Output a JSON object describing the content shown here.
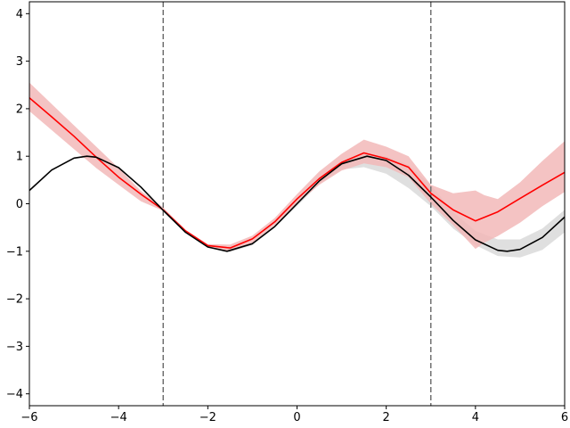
{
  "chart_data": {
    "type": "line",
    "title": "",
    "xlabel": "",
    "ylabel": "",
    "xlim": [
      -6,
      6
    ],
    "ylim": [
      -4.25,
      4.25
    ],
    "grid": false,
    "legend": "none",
    "xticks": [
      -6,
      -4,
      -2,
      0,
      2,
      4,
      6
    ],
    "yticks": [
      -4,
      -3,
      -2,
      -1,
      0,
      1,
      2,
      3,
      4
    ],
    "xtick_labels": [
      "−6",
      "−4",
      "−2",
      "0",
      "2",
      "4",
      "6"
    ],
    "ytick_labels": [
      "−4",
      "−3",
      "−2",
      "−1",
      "0",
      "1",
      "2",
      "3",
      "4"
    ],
    "vlines": [
      {
        "x": -3,
        "style": "dashed",
        "color": "#707070"
      },
      {
        "x": 3,
        "style": "dashed",
        "color": "#707070"
      }
    ],
    "series": [
      {
        "kind": "band",
        "color": "#d9d9d9",
        "x": [
          -3,
          -2.5,
          -2,
          -1.5,
          -1,
          -0.5,
          0,
          0.5,
          1,
          1.5,
          2,
          2.5,
          3,
          3.5,
          4,
          4.5,
          5,
          5.5,
          6
        ],
        "lower": [
          -0.14,
          -0.6,
          -0.91,
          -1.02,
          -0.87,
          -0.5,
          -0.05,
          0.42,
          0.72,
          0.77,
          0.63,
          0.33,
          -0.05,
          -0.52,
          -0.87,
          -1.1,
          -1.13,
          -0.97,
          -0.6
        ],
        "upper": [
          -0.14,
          -0.6,
          -0.91,
          -0.97,
          -0.82,
          -0.46,
          0.05,
          0.53,
          0.88,
          1.05,
          1.0,
          0.82,
          0.4,
          -0.17,
          -0.57,
          -0.75,
          -0.75,
          -0.52,
          -0.13
        ]
      },
      {
        "kind": "band",
        "color": "#f2b8b8",
        "x": [
          -6,
          -5.5,
          -5,
          -4.5,
          -4,
          -3.5,
          -3,
          -2.5,
          -2,
          -1.5,
          -1,
          -0.5,
          0,
          0.5,
          1,
          1.5,
          2,
          2.5,
          3,
          3.5,
          4,
          4.2,
          4.5,
          5,
          5.5,
          6
        ],
        "lower": [
          1.95,
          1.55,
          1.15,
          0.75,
          0.4,
          0.05,
          -0.15,
          -0.6,
          -0.9,
          -1.0,
          -0.82,
          -0.45,
          0.0,
          0.4,
          0.7,
          0.85,
          0.77,
          0.56,
          0.0,
          -0.45,
          -0.95,
          -0.82,
          -0.68,
          -0.4,
          -0.05,
          0.25
        ],
        "upper": [
          2.55,
          2.1,
          1.65,
          1.2,
          0.75,
          0.27,
          -0.08,
          -0.55,
          -0.85,
          -0.86,
          -0.67,
          -0.3,
          0.2,
          0.68,
          1.05,
          1.35,
          1.2,
          1.0,
          0.4,
          0.22,
          0.28,
          0.18,
          0.1,
          0.45,
          0.9,
          1.32
        ]
      },
      {
        "name": "",
        "kind": "line",
        "color": "#ff0000",
        "x": [
          -6,
          -5.5,
          -5,
          -4.5,
          -4,
          -3.5,
          -3,
          -2.5,
          -2,
          -1.5,
          -1,
          -0.5,
          0,
          0.5,
          1,
          1.5,
          2,
          2.5,
          3,
          3.5,
          4,
          4.5,
          5,
          5.5,
          6
        ],
        "y": [
          2.23,
          1.83,
          1.42,
          0.98,
          0.56,
          0.2,
          -0.13,
          -0.57,
          -0.88,
          -0.93,
          -0.74,
          -0.38,
          0.1,
          0.53,
          0.87,
          1.07,
          0.95,
          0.77,
          0.22,
          -0.13,
          -0.36,
          -0.17,
          0.11,
          0.39,
          0.66
        ]
      },
      {
        "name": "",
        "kind": "line",
        "color": "#000000",
        "function": "sin(x)",
        "x": [
          -6,
          -5.5,
          -5,
          -4.71,
          -4.5,
          -4,
          -3.5,
          -3,
          -2.5,
          -2,
          -1.57,
          -1,
          -0.5,
          0,
          0.5,
          1,
          1.57,
          2,
          2.5,
          3,
          3.5,
          4,
          4.5,
          4.71,
          5,
          5.5,
          6
        ],
        "y": [
          0.28,
          0.71,
          0.96,
          1.0,
          0.98,
          0.76,
          0.35,
          -0.14,
          -0.6,
          -0.91,
          -1.0,
          -0.84,
          -0.48,
          0.0,
          0.48,
          0.84,
          1.0,
          0.91,
          0.6,
          0.14,
          -0.35,
          -0.76,
          -0.98,
          -1.0,
          -0.96,
          -0.71,
          -0.28
        ]
      }
    ]
  }
}
